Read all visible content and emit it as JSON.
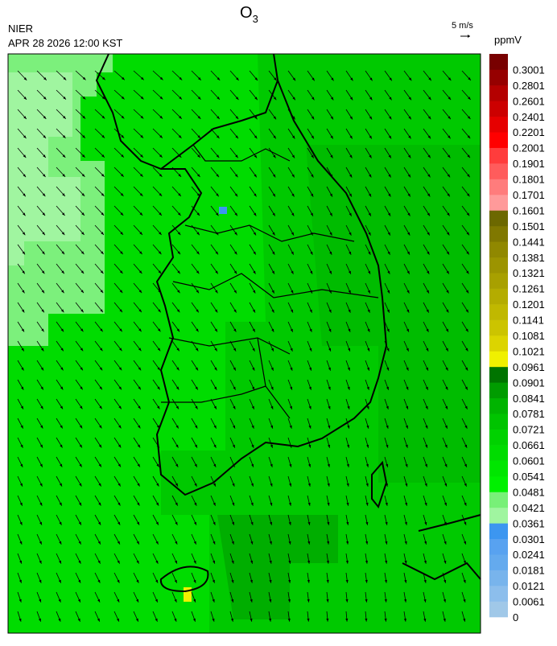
{
  "header": {
    "title": {
      "main": "O",
      "subscript": "3"
    },
    "agency": "NIER",
    "timestamp": "APR 28 2026 12:00 KST",
    "vector_scale": "5 m/s",
    "unit": "ppmV"
  },
  "colorbar": {
    "labels": [
      0,
      0.0061,
      0.0121,
      0.0181,
      0.0241,
      0.0301,
      0.0361,
      0.0421,
      0.0481,
      0.0541,
      0.0601,
      0.0661,
      0.0721,
      0.0781,
      0.0841,
      0.0901,
      0.0961,
      0.1021,
      0.1081,
      0.1141,
      0.1201,
      0.1261,
      0.1321,
      0.1381,
      0.1441,
      0.1501,
      0.1601,
      0.1701,
      0.1801,
      0.1901,
      0.2001,
      0.2201,
      0.2401,
      0.2601,
      0.2801,
      0.3001
    ],
    "colors": [
      "#a0c8e8",
      "#8cbeec",
      "#78b4ec",
      "#64aaee",
      "#58a2f0",
      "#3c96f0",
      "#a0f5a0",
      "#78f078",
      "#00f000",
      "#00e600",
      "#00dc00",
      "#00d200",
      "#00c400",
      "#00b400",
      "#009c00",
      "#007400",
      "#f0f000",
      "#dcd400",
      "#ccc400",
      "#c0b800",
      "#b4ac00",
      "#a8a000",
      "#9c9400",
      "#908800",
      "#807800",
      "#6c6800",
      "#ff9a9a",
      "#ff7c7c",
      "#ff5c5c",
      "#ff3c3c",
      "#ff0000",
      "#e60000",
      "#cc0000",
      "#b40000",
      "#960000",
      "#780000"
    ]
  }
}
